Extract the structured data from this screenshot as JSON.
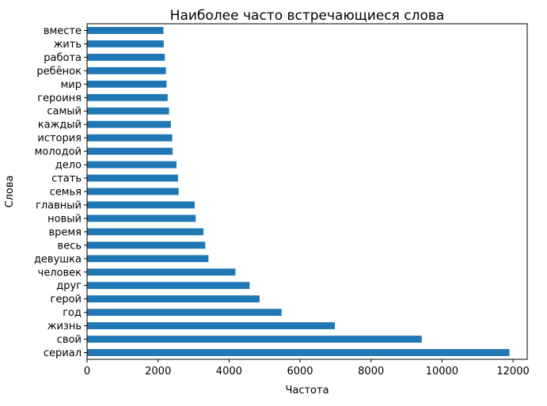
{
  "chart_data": {
    "type": "bar",
    "orientation": "horizontal",
    "title": "Наиболее часто встречающиеся слова",
    "xlabel": "Частота",
    "ylabel": "Слова",
    "categories": [
      "сериал",
      "свой",
      "жизнь",
      "год",
      "герой",
      "друг",
      "человек",
      "девушка",
      "весь",
      "время",
      "новый",
      "главный",
      "семья",
      "стать",
      "дело",
      "молодой",
      "история",
      "каждый",
      "самый",
      "героиня",
      "мир",
      "ребёнок",
      "работа",
      "жить",
      "вместе"
    ],
    "values": [
      11900,
      9430,
      6980,
      5480,
      4860,
      4580,
      4180,
      3420,
      3330,
      3280,
      3060,
      3030,
      2580,
      2560,
      2520,
      2410,
      2400,
      2360,
      2310,
      2270,
      2240,
      2220,
      2190,
      2160,
      2150
    ],
    "xlim": [
      0,
      12400
    ],
    "xticks": [
      0,
      2000,
      4000,
      6000,
      8000,
      10000,
      12000
    ],
    "bar_color": "#1f77b4",
    "grid": false,
    "legend": "none"
  }
}
